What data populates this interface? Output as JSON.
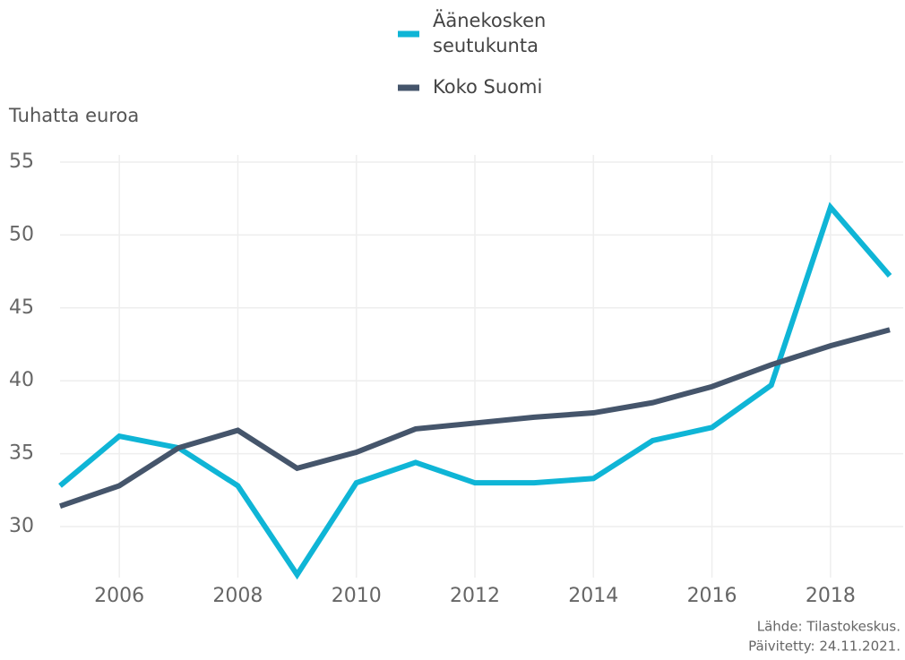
{
  "chart_data": {
    "type": "line",
    "y_axis_label": "Tuhatta euroa",
    "x": [
      2005,
      2006,
      2007,
      2008,
      2009,
      2010,
      2011,
      2012,
      2013,
      2014,
      2015,
      2016,
      2017,
      2018,
      2019
    ],
    "series": [
      {
        "name": [
          "Äänekosken",
          "seutukunta"
        ],
        "color": "#0fb5d6",
        "values": [
          32.8,
          36.2,
          35.4,
          32.8,
          26.7,
          33.0,
          34.4,
          33.0,
          33.0,
          33.3,
          35.9,
          36.8,
          39.7,
          51.9,
          47.2
        ]
      },
      {
        "name": [
          "Koko Suomi"
        ],
        "color": "#45556b",
        "values": [
          31.4,
          32.8,
          35.4,
          36.6,
          34.0,
          35.1,
          36.7,
          37.1,
          37.5,
          37.8,
          38.5,
          39.6,
          41.1,
          42.4,
          43.5
        ]
      }
    ],
    "xlim": [
      2005,
      2019
    ],
    "xticks": [
      2006,
      2008,
      2010,
      2012,
      2014,
      2016,
      2018
    ],
    "ylim": [
      26.5,
      55
    ],
    "yticks": [
      30,
      35,
      40,
      45,
      50,
      55
    ],
    "grid": true,
    "source": [
      "Lähde: Tilastokeskus.",
      "Päivitetty: 24.11.2021."
    ]
  }
}
